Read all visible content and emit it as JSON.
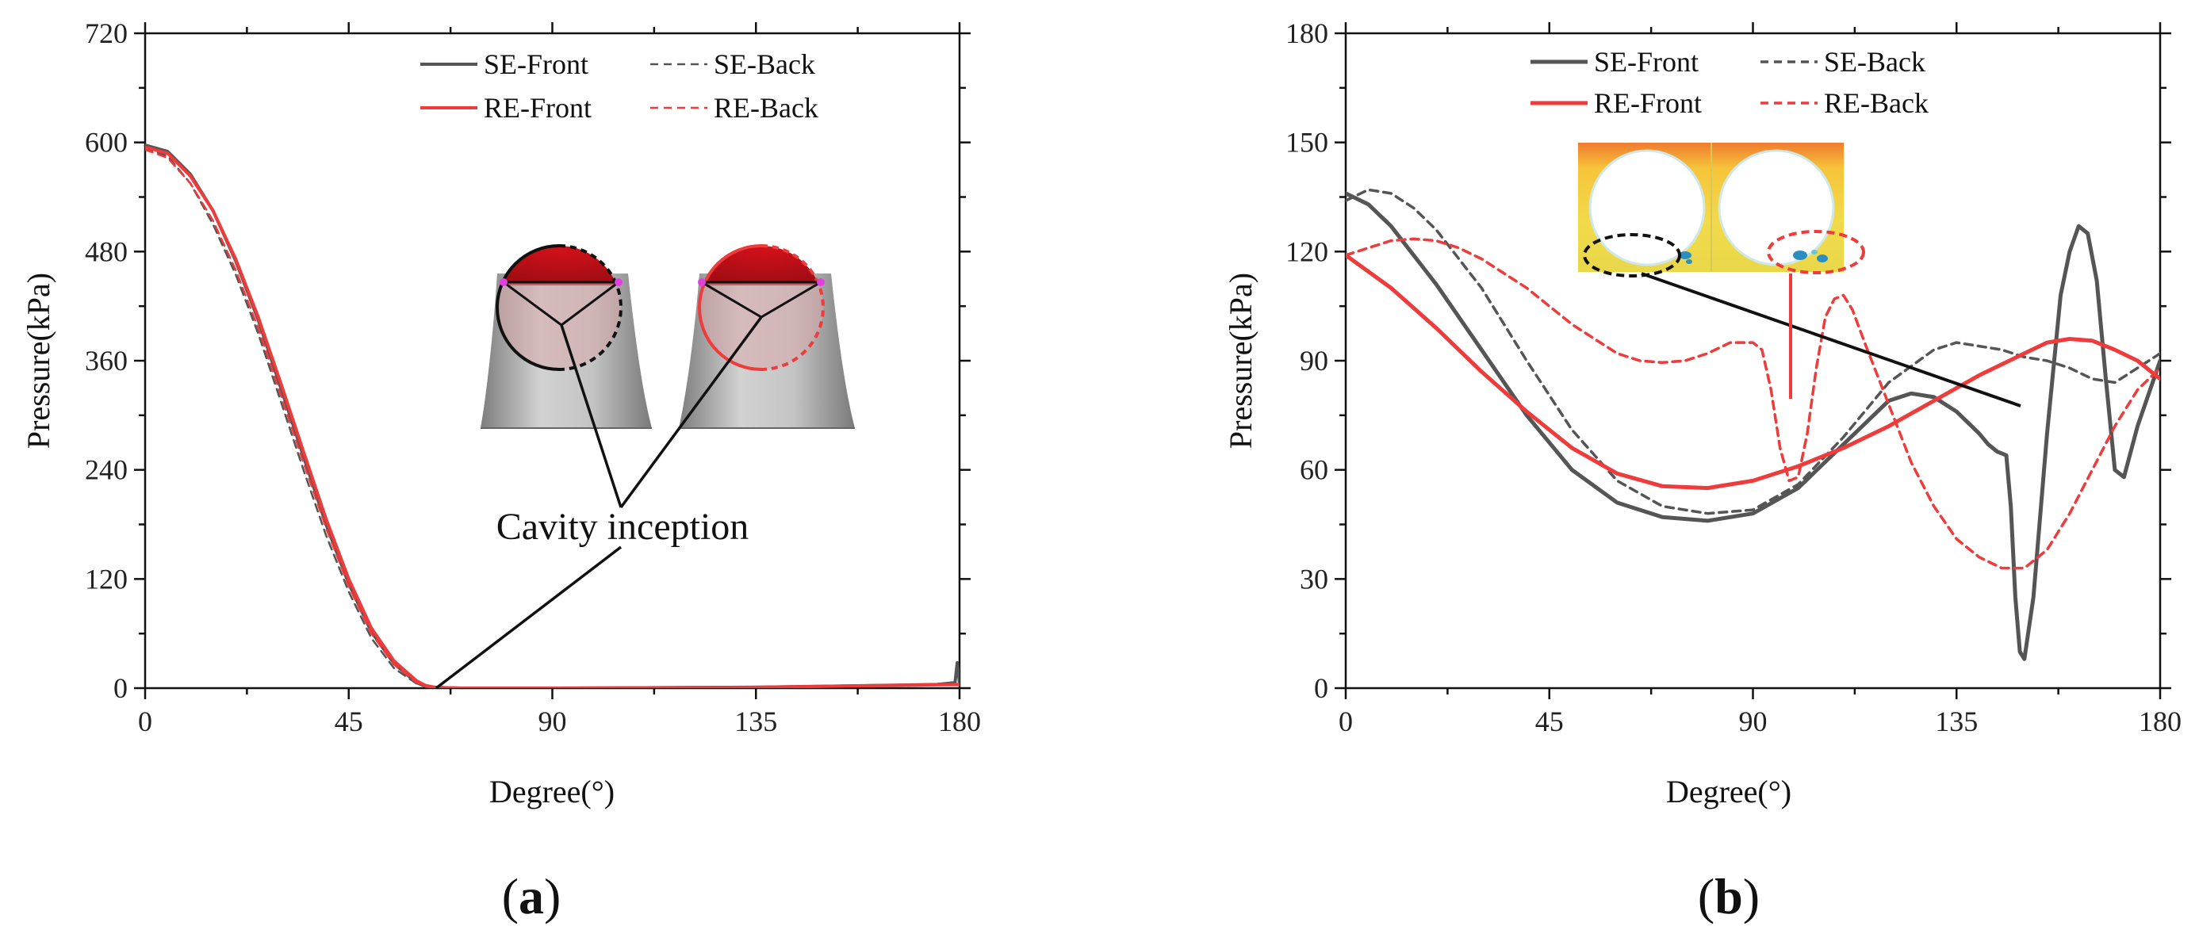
{
  "chart_data": [
    {
      "type": "line",
      "panel": "(a)",
      "panel_parts": [
        "(",
        "a",
        ")"
      ],
      "xlabel": "Degree(°)",
      "ylabel": "Pressure(kPa)",
      "xlim": [
        0,
        180
      ],
      "ylim": [
        0,
        720
      ],
      "xticks": [
        0,
        45,
        90,
        135,
        180
      ],
      "yticks": [
        0,
        120,
        240,
        360,
        480,
        600,
        720
      ],
      "legend_position": "top-right",
      "annotation": "Cavity inception",
      "series": [
        {
          "name": "SE-Front",
          "color": "#555555",
          "dash": "solid",
          "x": [
            0,
            5,
            10,
            15,
            20,
            25,
            30,
            35,
            40,
            45,
            50,
            55,
            60,
            62,
            64,
            66,
            70,
            90,
            135,
            175,
            179,
            179.5,
            180
          ],
          "y": [
            597,
            590,
            565,
            525,
            470,
            405,
            330,
            255,
            180,
            115,
            62,
            27,
            6,
            2,
            1,
            0.5,
            0,
            0,
            1,
            4,
            6,
            28,
            5
          ]
        },
        {
          "name": "SE-Back",
          "color": "#555555",
          "dash": "dashed",
          "x": [
            0,
            5,
            10,
            15,
            20,
            25,
            30,
            35,
            40,
            45,
            50,
            55,
            60,
            62,
            64,
            66,
            70,
            90,
            135,
            180
          ],
          "y": [
            594,
            585,
            555,
            510,
            455,
            390,
            315,
            240,
            168,
            106,
            55,
            22,
            5,
            2,
            1,
            0.5,
            0,
            0,
            1,
            4
          ]
        },
        {
          "name": "RE-Front",
          "color": "#ee3b3b",
          "dash": "solid",
          "x": [
            0,
            5,
            10,
            15,
            20,
            25,
            30,
            35,
            40,
            45,
            50,
            55,
            60,
            62,
            64,
            66,
            70,
            90,
            135,
            180
          ],
          "y": [
            595,
            588,
            563,
            525,
            472,
            408,
            335,
            260,
            186,
            120,
            66,
            30,
            8,
            3,
            1,
            0.5,
            0,
            0,
            1,
            4
          ]
        },
        {
          "name": "RE-Back",
          "color": "#ee3b3b",
          "dash": "dashed",
          "x": [
            0,
            5,
            10,
            15,
            20,
            25,
            30,
            35,
            40,
            45,
            50,
            55,
            60,
            62,
            64,
            66,
            70,
            90,
            135,
            180
          ],
          "y": [
            592,
            583,
            555,
            514,
            460,
            396,
            322,
            248,
            176,
            112,
            60,
            26,
            6,
            2,
            1,
            0.5,
            0,
            0,
            1,
            4
          ]
        }
      ]
    },
    {
      "type": "line",
      "panel": "(b)",
      "panel_parts": [
        "(",
        "b",
        ")"
      ],
      "xlabel": "Degree(°)",
      "ylabel": "Pressure(kPa)",
      "xlim": [
        0,
        180
      ],
      "ylim": [
        0,
        180
      ],
      "xticks": [
        0,
        45,
        90,
        135,
        180
      ],
      "yticks": [
        0,
        30,
        60,
        90,
        120,
        150,
        180
      ],
      "legend_position": "top-center",
      "series": [
        {
          "name": "SE-Front",
          "color": "#555555",
          "dash": "solid",
          "x": [
            0,
            5,
            10,
            15,
            20,
            30,
            40,
            50,
            60,
            70,
            80,
            90,
            100,
            110,
            120,
            125,
            130,
            135,
            140,
            142,
            144,
            146,
            147,
            148,
            149,
            150,
            152,
            155,
            158,
            160,
            162,
            164,
            166,
            168,
            170,
            172,
            175,
            180
          ],
          "y": [
            136,
            133,
            127,
            119,
            111,
            93,
            75,
            60,
            51,
            47,
            46,
            48,
            55,
            67,
            79,
            81,
            80,
            76,
            70,
            67,
            65,
            64,
            50,
            25,
            10,
            8,
            25,
            70,
            108,
            120,
            127,
            125,
            112,
            85,
            60,
            58,
            72,
            90
          ]
        },
        {
          "name": "SE-Back",
          "color": "#555555",
          "dash": "dashed",
          "x": [
            0,
            5,
            10,
            15,
            20,
            30,
            40,
            50,
            60,
            70,
            80,
            90,
            100,
            110,
            120,
            130,
            135,
            140,
            145,
            150,
            155,
            160,
            165,
            170,
            175,
            180
          ],
          "y": [
            134,
            137,
            136,
            132,
            126,
            110,
            90,
            71,
            57,
            50,
            48,
            49,
            56,
            69,
            84,
            93,
            95,
            94,
            93,
            91,
            90,
            88,
            85,
            84,
            88,
            92
          ]
        },
        {
          "name": "RE-Front",
          "color": "#ee3b3b",
          "dash": "solid",
          "x": [
            0,
            10,
            20,
            30,
            40,
            50,
            60,
            70,
            80,
            90,
            100,
            110,
            120,
            130,
            140,
            150,
            155,
            160,
            165,
            170,
            175,
            180
          ],
          "y": [
            119,
            110,
            99,
            87,
            76,
            66,
            59,
            55.5,
            55,
            57,
            61,
            66,
            72,
            79,
            86,
            92,
            95,
            96,
            95.5,
            93,
            90,
            85
          ]
        },
        {
          "name": "RE-Back",
          "color": "#ee3b3b",
          "dash": "dashed",
          "x": [
            0,
            5,
            10,
            15,
            20,
            25,
            30,
            35,
            40,
            45,
            50,
            55,
            60,
            65,
            70,
            75,
            80,
            85,
            90,
            92,
            94,
            96,
            98,
            100,
            102,
            104,
            106,
            108,
            110,
            112,
            115,
            120,
            125,
            130,
            135,
            140,
            145,
            150,
            155,
            160,
            165,
            170,
            175,
            180
          ],
          "y": [
            119,
            121,
            123,
            123.5,
            123,
            121,
            118,
            114,
            110,
            105,
            100,
            96,
            92,
            90,
            89.5,
            90,
            92,
            95,
            95,
            93,
            82,
            66,
            57,
            58,
            70,
            88,
            102,
            107,
            108,
            104,
            94,
            78,
            62,
            50,
            41,
            36,
            33,
            33,
            38,
            48,
            60,
            72,
            82,
            88
          ]
        }
      ]
    }
  ]
}
